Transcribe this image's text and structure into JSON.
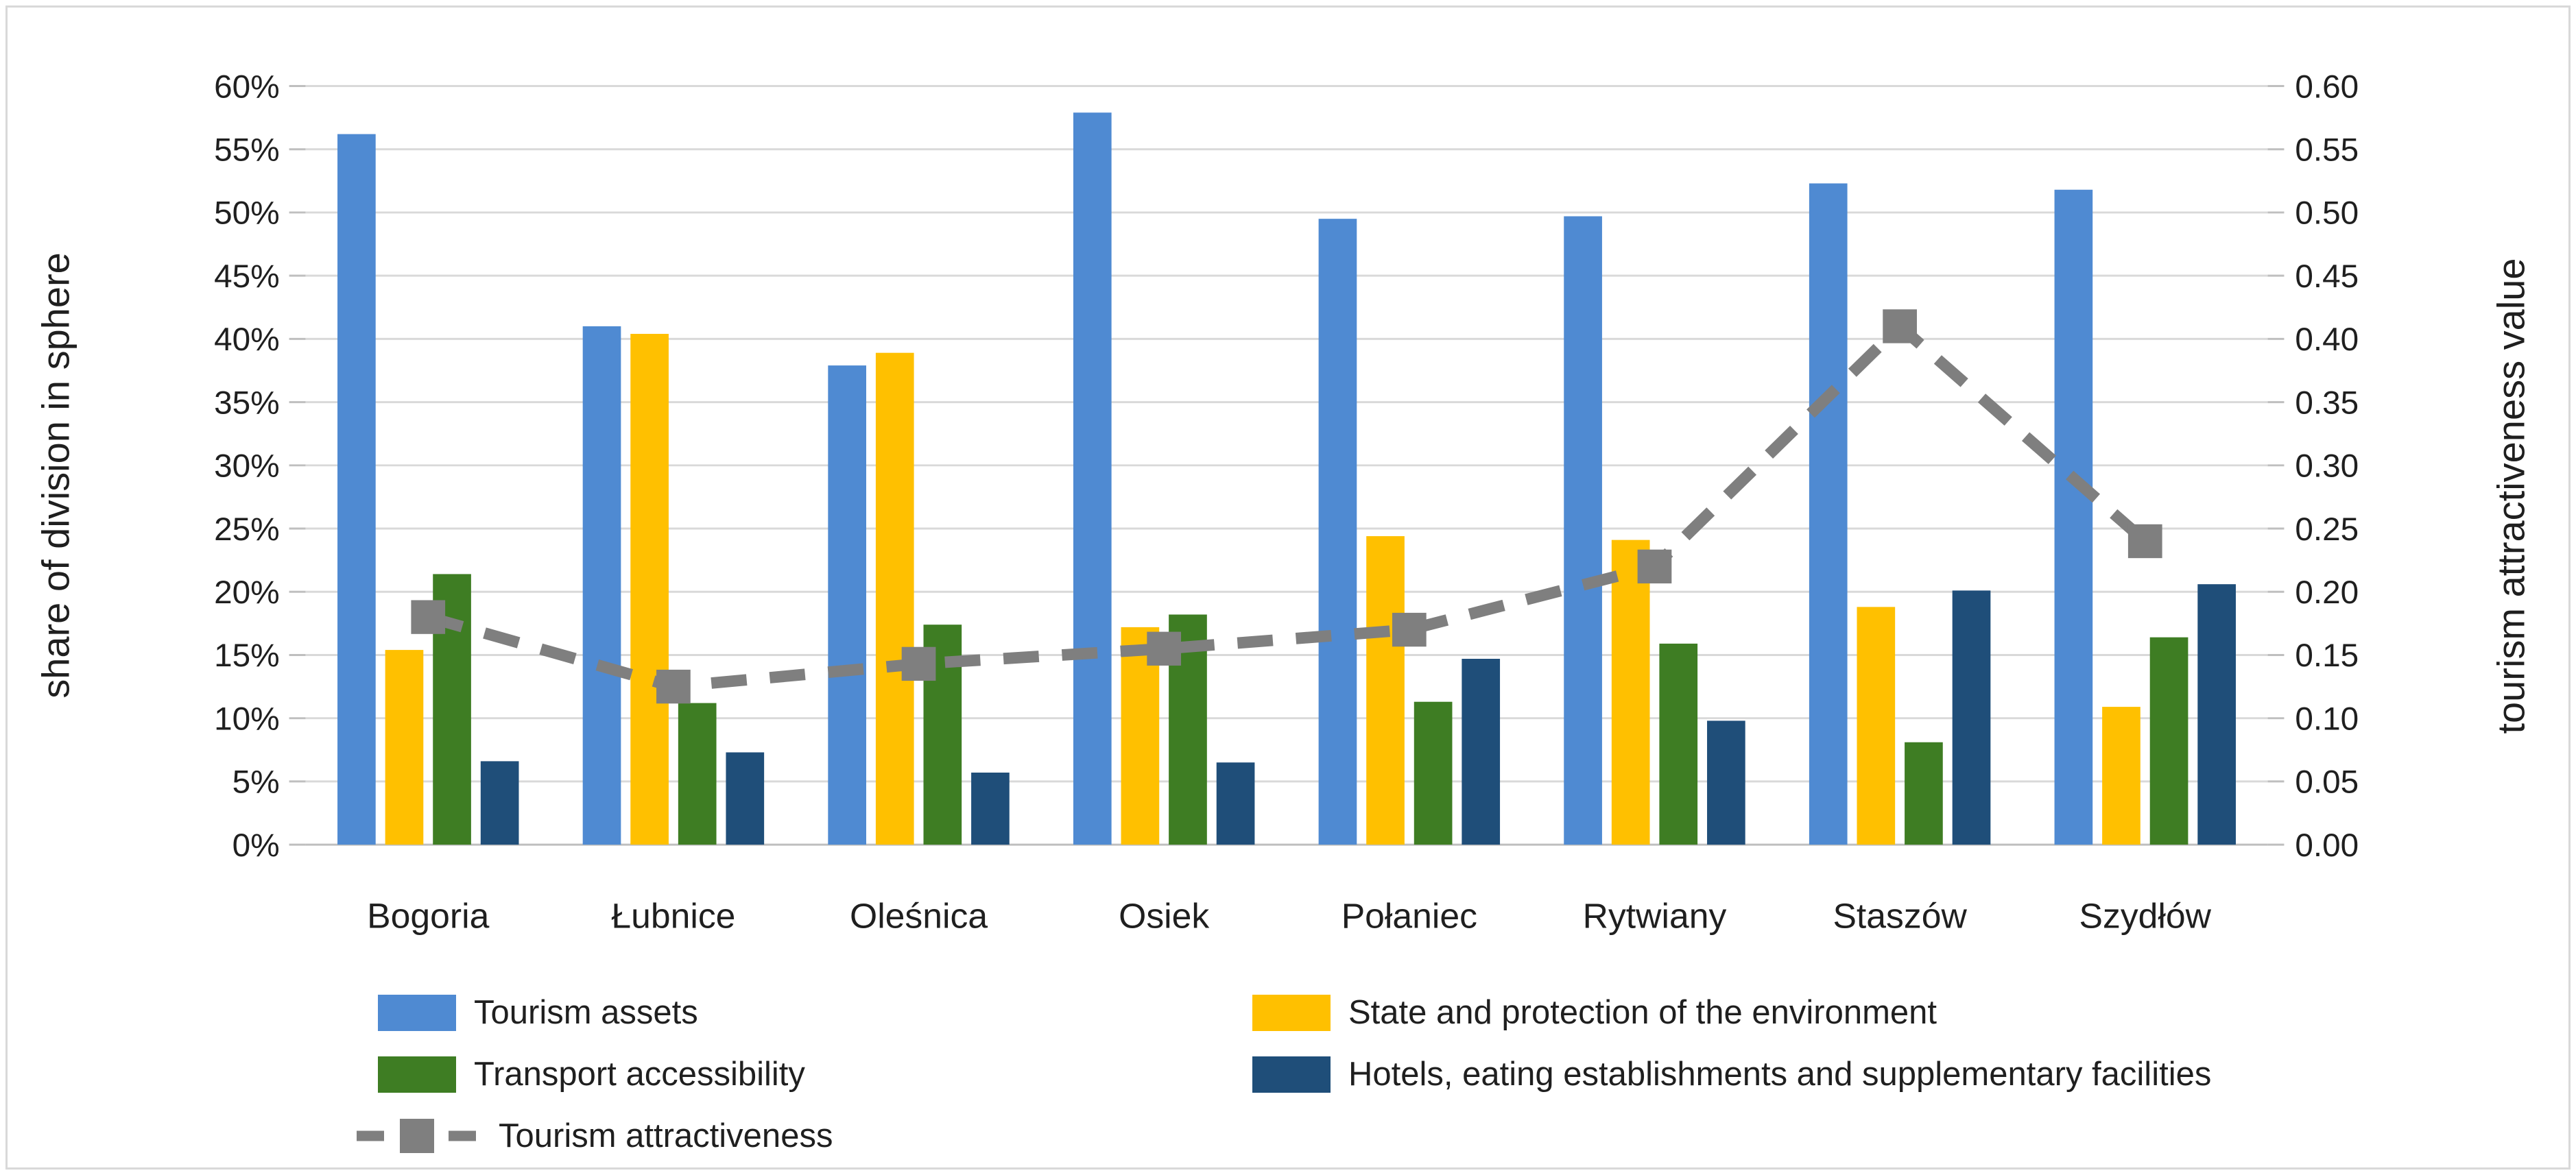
{
  "chart_data": {
    "type": "bar+line",
    "title": "",
    "categories": [
      "Bogoria",
      "Łubnice",
      "Oleśnica",
      "Osiek",
      "Połaniec",
      "Rytwiany",
      "Staszów",
      "Szydłów"
    ],
    "series": [
      {
        "name": "Tourism assets",
        "type": "bar",
        "axis": "left",
        "color": "#4f8ad2",
        "values": [
          56.2,
          41.0,
          37.9,
          57.9,
          49.5,
          49.7,
          52.3,
          51.8
        ]
      },
      {
        "name": "State and protection of the environment",
        "type": "bar",
        "axis": "left",
        "color": "#ffc000",
        "values": [
          15.4,
          40.4,
          38.9,
          17.2,
          24.4,
          24.1,
          18.8,
          10.9
        ]
      },
      {
        "name": "Transport accessibility",
        "type": "bar",
        "axis": "left",
        "color": "#3e7d23",
        "values": [
          21.4,
          11.2,
          17.4,
          18.2,
          11.3,
          15.9,
          8.1,
          16.4
        ]
      },
      {
        "name": "Hotels, eating establishments and supplementary facilities",
        "type": "bar",
        "axis": "left",
        "color": "#1f4e79",
        "values": [
          6.6,
          7.3,
          5.7,
          6.5,
          14.7,
          9.8,
          20.1,
          20.6
        ]
      },
      {
        "name": "Tourism attractiveness",
        "type": "line",
        "axis": "right",
        "color": "#7f7f7f",
        "marker": "square",
        "dashed": true,
        "values": [
          0.18,
          0.125,
          0.143,
          0.155,
          0.17,
          0.22,
          0.41,
          0.24
        ]
      }
    ],
    "left_axis": {
      "title": "share of division in sphere",
      "min": 0,
      "max": 60,
      "step": 5,
      "tick_labels": [
        "0%",
        "5%",
        "10%",
        "15%",
        "20%",
        "25%",
        "30%",
        "35%",
        "40%",
        "45%",
        "50%",
        "55%",
        "60%"
      ]
    },
    "right_axis": {
      "title": "tourism attractiveness value",
      "min": 0,
      "max": 0.6,
      "step": 0.05,
      "tick_labels": [
        "0.00",
        "0.05",
        "0.10",
        "0.15",
        "0.20",
        "0.25",
        "0.30",
        "0.35",
        "0.40",
        "0.45",
        "0.50",
        "0.55",
        "0.60"
      ]
    },
    "grid": "horizontal",
    "legend_position": "bottom",
    "colors": {
      "gridline": "#d9d9d9",
      "axis_line": "#bfbfbf",
      "text": "#1f1f1f",
      "border": "#d9d9d9"
    }
  }
}
